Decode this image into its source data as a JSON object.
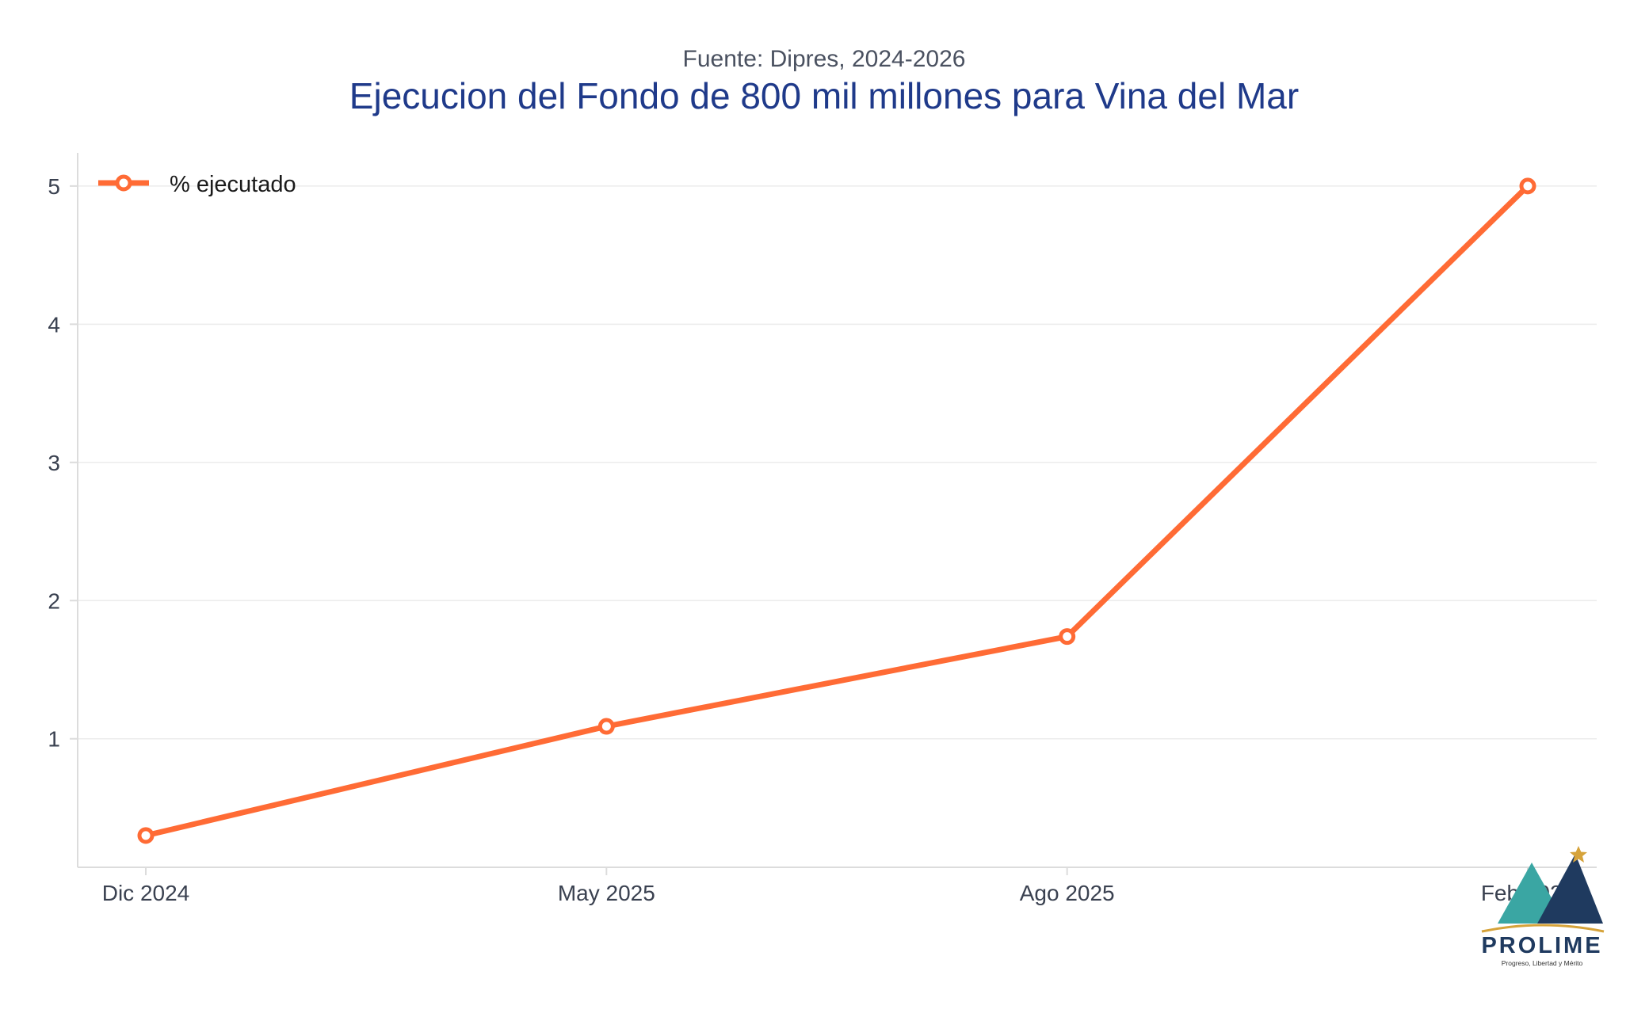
{
  "header": {
    "subtitle": "Fuente: Dipres, 2024-2026",
    "title": "Ejecucion del Fondo de 800 mil millones para Vina del Mar"
  },
  "logo": {
    "name": "PROLIME",
    "tagline": "Progreso, Libertad y Mérito"
  },
  "colors": {
    "series": "#ff6b35",
    "title": "#1f3a8a",
    "logo_teal": "#3aa6a3",
    "logo_navy": "#1f3a5f",
    "logo_gold": "#d6a33a"
  },
  "chart_data": {
    "type": "line",
    "title": "Ejecucion del Fondo de 800 mil millones para Vina del Mar",
    "subtitle": "Fuente: Dipres, 2024-2026",
    "xlabel": "",
    "ylabel": "",
    "categories": [
      "Dic 2024",
      "May 2025",
      "Ago 2025",
      "Feb 2026"
    ],
    "series": [
      {
        "name": "% ejecutado",
        "values": [
          0.3,
          1.09,
          1.74,
          5.0
        ]
      }
    ],
    "yticks": [
      1,
      2,
      3,
      4,
      5
    ],
    "ylim": [
      0.07,
      5.24
    ],
    "grid": true,
    "legend_position": "top-left"
  }
}
